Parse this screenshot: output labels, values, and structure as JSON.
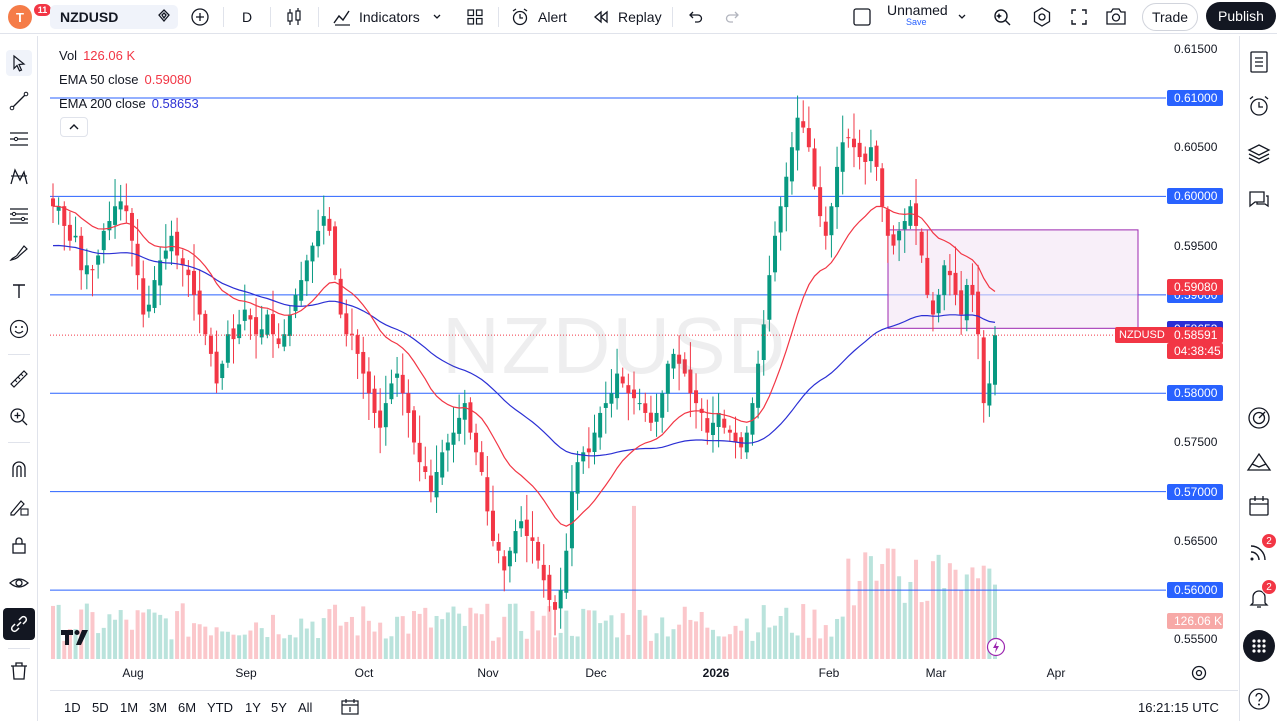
{
  "topbar": {
    "avatar_letter": "T",
    "avatar_badge": "11",
    "symbol": "NZDUSD",
    "interval": "D",
    "indicators_label": "Indicators",
    "alert_label": "Alert",
    "replay_label": "Replay",
    "layout_name": "Unnamed",
    "layout_save": "Save",
    "trade_label": "Trade",
    "publish_label": "Publish"
  },
  "legend": {
    "vol_label": "Vol",
    "vol_value": "126.06 K",
    "ema50_label": "EMA 50 close",
    "ema50_value": "0.59080",
    "ema200_label": "EMA 200 close",
    "ema200_value": "0.58653"
  },
  "watermark": "NZDUSD",
  "price_axis": {
    "ticks": [
      "0.61500",
      "0.60500",
      "0.59500",
      "0.57500",
      "0.56500",
      "0.55500"
    ],
    "level_labels": [
      "0.61000",
      "0.60000",
      "0.59000",
      "0.58000",
      "0.57000",
      "0.56000"
    ],
    "ema50_label": "0.59080",
    "ema200_label": "0.58653",
    "symbol_tag": "NZDUSD",
    "last_price": "0.58591",
    "countdown": "04:38:45",
    "volume_label": "126.06 K"
  },
  "time_axis": {
    "labels": [
      "Aug",
      "Sep",
      "Oct",
      "Nov",
      "Dec",
      "2026",
      "Feb",
      "Mar",
      "Apr"
    ]
  },
  "bottombar": {
    "ranges": [
      "1D",
      "5D",
      "1M",
      "3M",
      "6M",
      "YTD",
      "1Y",
      "5Y",
      "All"
    ],
    "clock": "16:21:15 UTC"
  },
  "right_badges": {
    "feed_count": "2",
    "notif_count": "2"
  },
  "colors": {
    "up": "#089981",
    "down": "#f23645",
    "ema50": "#f23645",
    "ema200": "#2b2fd4",
    "hline": "#2962ff",
    "rect_fill": "#f3e5f5",
    "rect_border": "#9c27b0"
  },
  "chart_data": {
    "type": "candlestick",
    "symbol": "NZDUSD",
    "interval": "1D",
    "horizontal_levels": [
      0.61,
      0.6,
      0.59,
      0.58,
      0.57,
      0.56
    ],
    "rectangle": {
      "from_date": "Feb 2026",
      "to_date": "Mar 2026",
      "price_high": 0.5966,
      "price_low": 0.5866
    },
    "ema50_last": 0.5908,
    "ema200_last": 0.58653,
    "last_price": 0.58591,
    "volume_last": "126.06 K",
    "y_range": [
      0.553,
      0.6163
    ],
    "x_labels": [
      "Aug",
      "Sep",
      "Oct",
      "Nov",
      "Dec",
      "2026",
      "Feb",
      "Mar",
      "Apr"
    ],
    "close_path": [
      0.599,
      0.599,
      0.597,
      0.5955,
      0.596,
      0.5925,
      0.593,
      0.5925,
      0.594,
      0.5965,
      0.5975,
      0.599,
      0.5995,
      0.5985,
      0.5955,
      0.592,
      0.588,
      0.589,
      0.5915,
      0.5935,
      0.5945,
      0.596,
      0.594,
      0.593,
      0.592,
      0.59,
      0.588,
      0.586,
      0.584,
      0.581,
      0.583,
      0.586,
      0.5855,
      0.587,
      0.5885,
      0.5875,
      0.586,
      0.5865,
      0.588,
      0.586,
      0.585,
      0.586,
      0.588,
      0.59,
      0.5915,
      0.5935,
      0.595,
      0.5965,
      0.598,
      0.5965,
      0.592,
      0.588,
      0.586,
      0.586,
      0.584,
      0.582,
      0.58,
      0.578,
      0.5765,
      0.579,
      0.581,
      0.582,
      0.58,
      0.578,
      0.575,
      0.573,
      0.572,
      0.57,
      0.572,
      0.574,
      0.575,
      0.576,
      0.5775,
      0.579,
      0.576,
      0.574,
      0.572,
      0.568,
      0.565,
      0.564,
      0.562,
      0.564,
      0.566,
      0.567,
      0.5655,
      0.565,
      0.563,
      0.561,
      0.559,
      0.558,
      0.56,
      0.564,
      0.57,
      0.573,
      0.574,
      0.574,
      0.576,
      0.578,
      0.579,
      0.58,
      0.582,
      0.581,
      0.58,
      0.5795,
      0.579,
      0.578,
      0.577,
      0.578,
      0.58,
      0.583,
      0.584,
      0.583,
      0.582,
      0.58,
      0.579,
      0.578,
      0.576,
      0.577,
      0.578,
      0.5765,
      0.576,
      0.575,
      0.5745,
      0.576,
      0.579,
      0.583,
      0.587,
      0.592,
      0.596,
      0.599,
      0.602,
      0.605,
      0.608,
      0.607,
      0.605,
      0.601,
      0.598,
      0.596,
      0.599,
      0.603,
      0.6055,
      0.606,
      0.605,
      0.604,
      0.6035,
      0.605,
      0.603,
      0.599,
      0.596,
      0.595,
      0.5965,
      0.5975,
      0.599,
      0.597,
      0.594,
      0.59,
      0.588,
      0.59,
      0.593,
      0.592,
      0.59,
      0.588,
      0.591,
      0.59,
      0.586,
      0.579,
      0.581,
      0.5859
    ]
  }
}
